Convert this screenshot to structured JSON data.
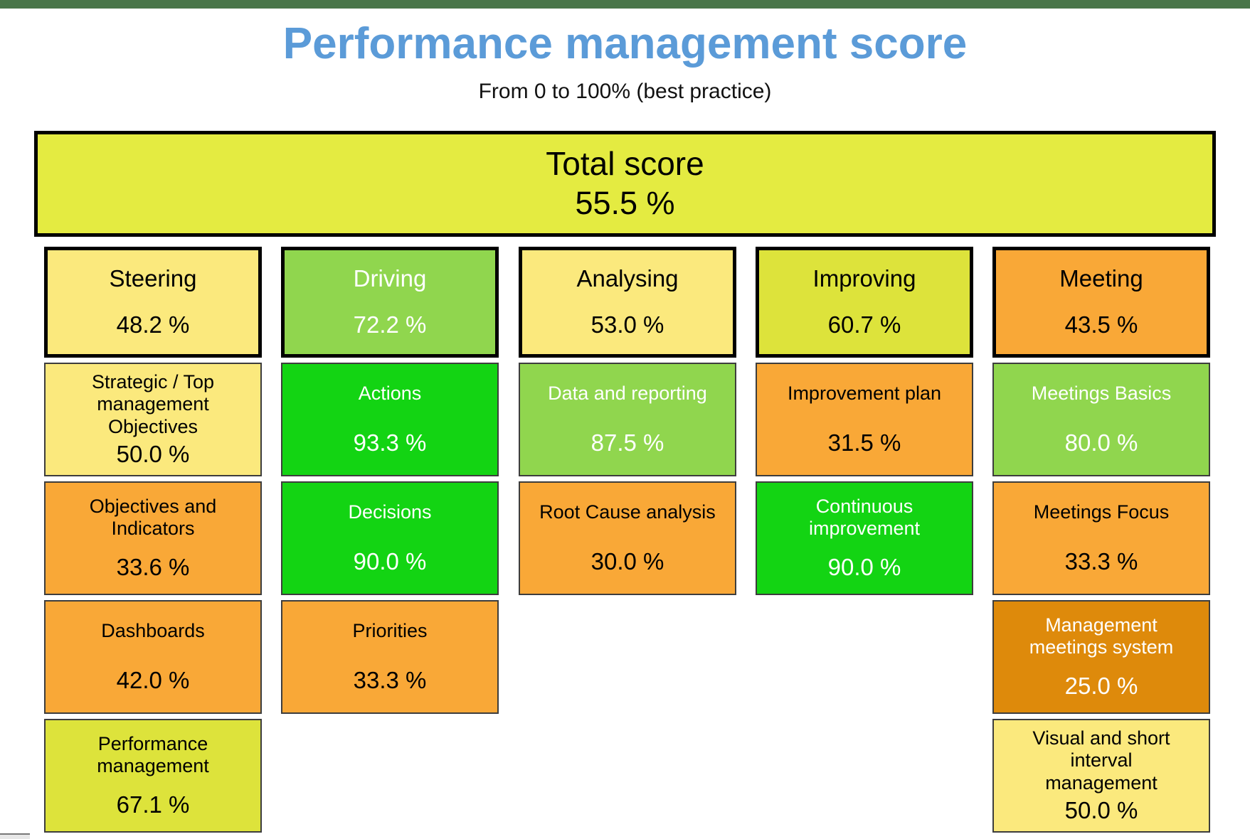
{
  "header": {
    "title": "Performance management score",
    "subtitle": "From 0 to 100% (best practice)"
  },
  "total": {
    "label": "Total score",
    "value": "55.5 %"
  },
  "colors": {
    "top_bar_green": "#497549",
    "title_blue": "#5b9bd8",
    "total_fill": "#e4eb41",
    "light_yellow": "#fbe97d",
    "yellow_green": "#dde33b",
    "light_green": "#90d64e",
    "bright_green": "#13d413",
    "orange": "#f9a837",
    "dark_orange": "#de8a0b"
  },
  "columns": [
    {
      "name": "Steering",
      "value": "48.2 %",
      "fill": "#fbe97d",
      "text_color": "#000000",
      "items": [
        {
          "label": "Strategic / Top\nmanagement\nObjectives",
          "value": "50.0 %",
          "fill": "#fbe97d",
          "text_color": "#000000"
        },
        {
          "label": "Objectives and\nIndicators",
          "value": "33.6 %",
          "fill": "#f9a837",
          "text_color": "#000000"
        },
        {
          "label": "Dashboards",
          "value": "42.0 %",
          "fill": "#f9a837",
          "text_color": "#000000"
        },
        {
          "label": "Performance\nmanagement",
          "value": "67.1 %",
          "fill": "#dde33b",
          "text_color": "#000000"
        }
      ]
    },
    {
      "name": "Driving",
      "value": "72.2 %",
      "fill": "#90d64e",
      "text_color": "#ffffff",
      "items": [
        {
          "label": "Actions",
          "value": "93.3 %",
          "fill": "#13d413",
          "text_color": "#ffffff"
        },
        {
          "label": "Decisions",
          "value": "90.0 %",
          "fill": "#13d413",
          "text_color": "#ffffff"
        },
        {
          "label": "Priorities",
          "value": "33.3 %",
          "fill": "#f9a837",
          "text_color": "#000000"
        }
      ]
    },
    {
      "name": "Analysing",
      "value": "53.0 %",
      "fill": "#fbe97d",
      "text_color": "#000000",
      "items": [
        {
          "label": "Data and reporting",
          "value": "87.5 %",
          "fill": "#90d64e",
          "text_color": "#ffffff"
        },
        {
          "label": "Root Cause analysis",
          "value": "30.0 %",
          "fill": "#f9a837",
          "text_color": "#000000"
        }
      ]
    },
    {
      "name": "Improving",
      "value": "60.7 %",
      "fill": "#dde33b",
      "text_color": "#000000",
      "items": [
        {
          "label": "Improvement plan",
          "value": "31.5 %",
          "fill": "#f9a837",
          "text_color": "#000000"
        },
        {
          "label": "Continuous\nimprovement",
          "value": "90.0 %",
          "fill": "#13d413",
          "text_color": "#ffffff"
        }
      ]
    },
    {
      "name": "Meeting",
      "value": "43.5 %",
      "fill": "#f9a837",
      "text_color": "#000000",
      "items": [
        {
          "label": "Meetings Basics",
          "value": "80.0 %",
          "fill": "#90d64e",
          "text_color": "#ffffff"
        },
        {
          "label": "Meetings Focus",
          "value": "33.3 %",
          "fill": "#f9a837",
          "text_color": "#000000"
        },
        {
          "label": "Management\nmeetings system",
          "value": "25.0 %",
          "fill": "#de8a0b",
          "text_color": "#ffffff"
        },
        {
          "label": "Visual and short\ninterval\nmanagement",
          "value": "50.0 %",
          "fill": "#fbe97d",
          "text_color": "#000000"
        }
      ]
    }
  ],
  "chart_data": {
    "type": "table",
    "title": "Performance management score",
    "subtitle": "From 0 to 100% (best practice)",
    "total": {
      "label": "Total score",
      "value_pct": 55.5
    },
    "categories": [
      "Steering",
      "Driving",
      "Analysing",
      "Improving",
      "Meeting"
    ],
    "category_scores_pct": [
      48.2,
      72.2,
      53.0,
      60.7,
      43.5
    ],
    "subitems": {
      "Steering": [
        [
          "Strategic / Top management Objectives",
          50.0
        ],
        [
          "Objectives and Indicators",
          33.6
        ],
        [
          "Dashboards",
          42.0
        ],
        [
          "Performance management",
          67.1
        ]
      ],
      "Driving": [
        [
          "Actions",
          93.3
        ],
        [
          "Decisions",
          90.0
        ],
        [
          "Priorities",
          33.3
        ]
      ],
      "Analysing": [
        [
          "Data and reporting",
          87.5
        ],
        [
          "Root Cause analysis",
          30.0
        ]
      ],
      "Improving": [
        [
          "Improvement plan",
          31.5
        ],
        [
          "Continuous improvement",
          90.0
        ]
      ],
      "Meeting": [
        [
          "Meetings Basics",
          80.0
        ],
        [
          "Meetings Focus",
          33.3
        ],
        [
          "Management meetings system",
          25.0
        ],
        [
          "Visual and short interval management",
          50.0
        ]
      ]
    },
    "value_range_pct": [
      0,
      100
    ],
    "color_coding": "green = high score, yellow = mid score, orange = low score"
  }
}
